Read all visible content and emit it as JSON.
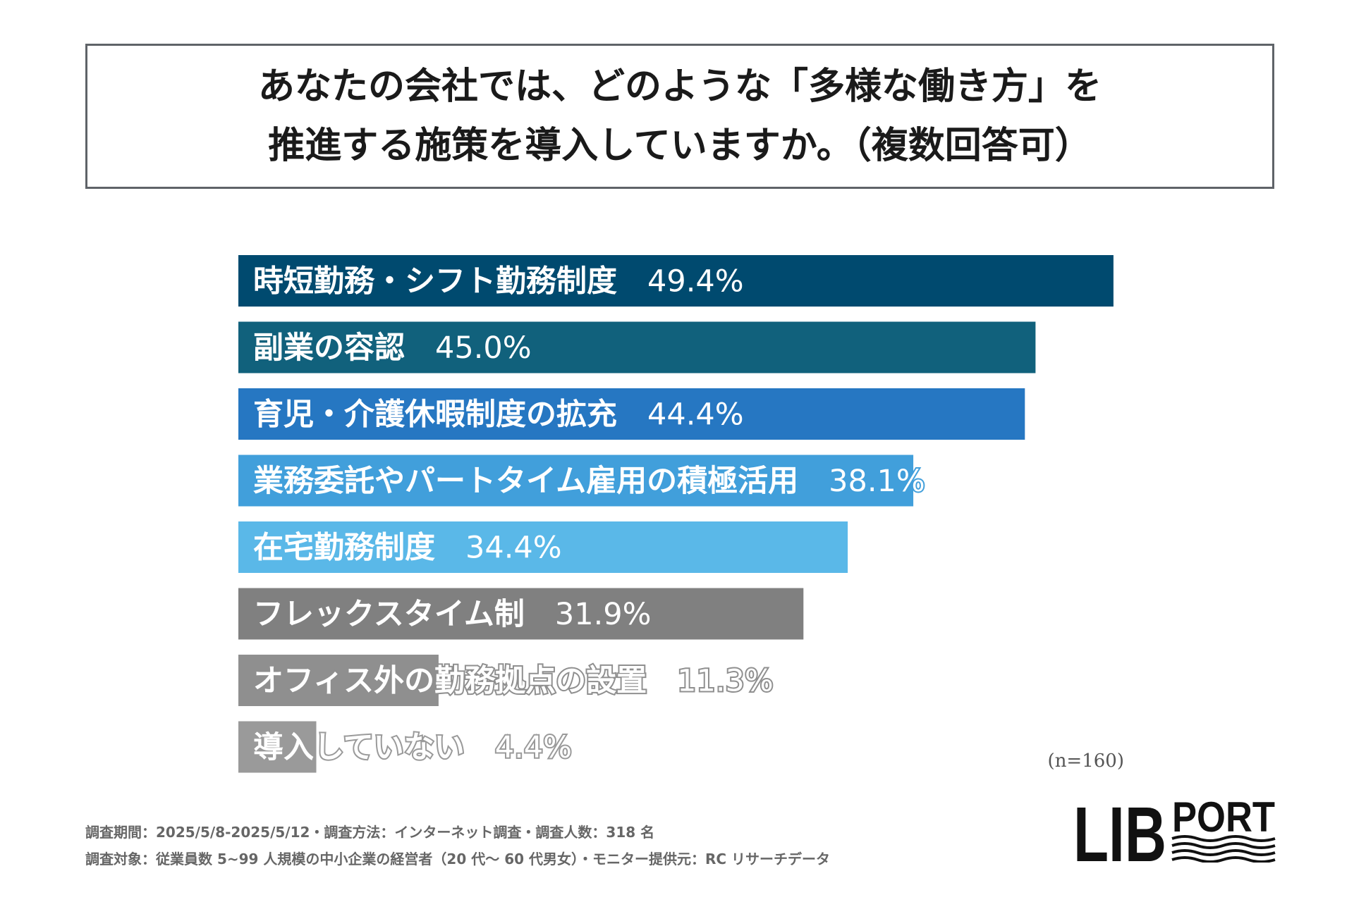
{
  "title": {
    "line1": "あなたの会社では、どのような「多様な働き方」を",
    "line2": "推進する施策を導入していますか。（複数回答可）"
  },
  "chart_data": {
    "type": "bar",
    "orientation": "horizontal",
    "categories": [
      "時短勤務・シフト勤務制度",
      "副業の容認",
      "育児・介護休暇制度の拡充",
      "業務委託やパートタイム雇用の積極活用",
      "在宅勤務制度",
      "フレックスタイム制",
      "オフィス外の勤務拠点の設置",
      "導入していない"
    ],
    "values": [
      49.4,
      45.0,
      44.4,
      38.1,
      34.4,
      31.9,
      11.3,
      4.4
    ],
    "value_labels": [
      "49.4%",
      "45.0%",
      "44.4%",
      "38.1%",
      "34.4%",
      "31.9%",
      "11.3%",
      "4.4%"
    ],
    "colors": [
      "#004a6f",
      "#11617c",
      "#2677c2",
      "#419fdb",
      "#5ab8e8",
      "#808080",
      "#8f8f8f",
      "#9a9a9a"
    ],
    "xlim": [
      0,
      50
    ],
    "title": "",
    "xlabel": "",
    "ylabel": "",
    "grid": false,
    "legend": "none"
  },
  "sample": "(n=160)",
  "footer": {
    "line1": "調査期間：2025/5/8-2025/5/12・調査方法：インターネット調査・調査人数：318 名",
    "line2": "調査対象：従業員数 5~99 人規模の中小企業の経営者（20 代～ 60 代男女）・モニター提供元：RC リサーチデータ"
  },
  "logo": {
    "part1": "LIB",
    "part2": "PORT",
    "color": "#111111"
  }
}
